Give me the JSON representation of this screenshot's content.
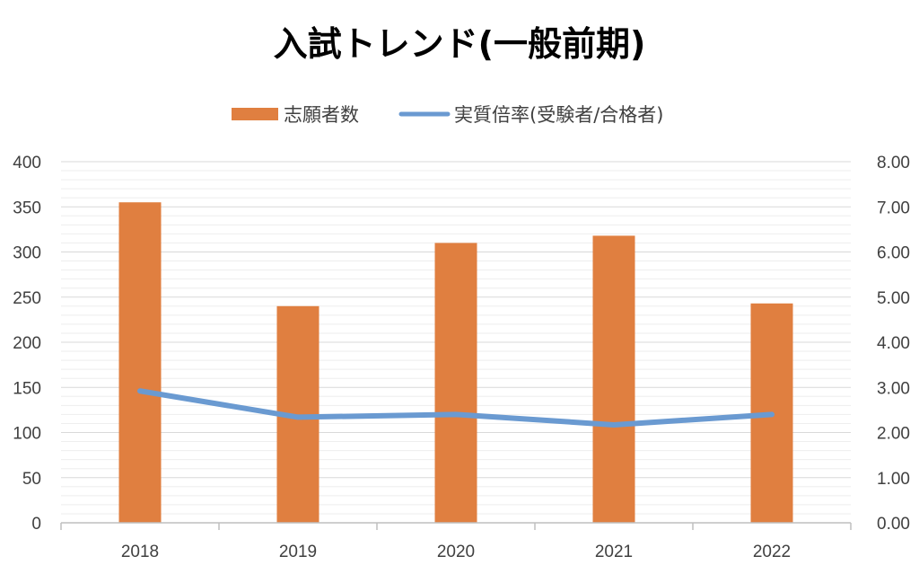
{
  "chart_data": {
    "type": "bar",
    "title": "入試トレンド(一般前期)",
    "categories": [
      "2018",
      "2019",
      "2020",
      "2021",
      "2022"
    ],
    "series": [
      {
        "name": "志願者数",
        "type": "bar",
        "axis": "left",
        "color": "#E07F40",
        "values": [
          355,
          240,
          310,
          318,
          243
        ]
      },
      {
        "name": "実質倍率(受験者/合格者)",
        "type": "line",
        "axis": "right",
        "color": "#6A9AD1",
        "values": [
          2.92,
          2.34,
          2.4,
          2.17,
          2.4
        ]
      }
    ],
    "y_left": {
      "ylim": [
        0,
        400
      ],
      "ticks": [
        "0",
        "50",
        "100",
        "150",
        "200",
        "250",
        "300",
        "350",
        "400"
      ]
    },
    "y_right": {
      "ylim": [
        0,
        8
      ],
      "ticks": [
        "0.00",
        "1.00",
        "2.00",
        "3.00",
        "4.00",
        "5.00",
        "6.00",
        "7.00",
        "8.00"
      ]
    },
    "legend_position": "top-center",
    "grid": true
  }
}
